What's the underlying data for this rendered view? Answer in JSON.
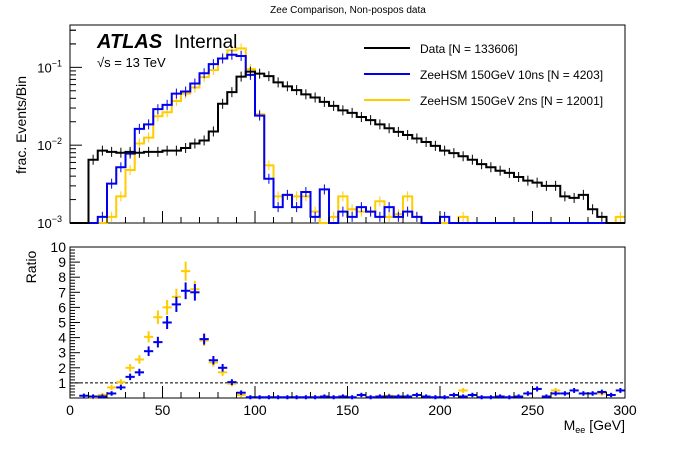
{
  "chart_data": [
    {
      "type": "line",
      "subtype": "step-histogram",
      "title": "Zee Comparison, Non-pospos data",
      "xlabel": "",
      "ylabel": "frac. Events/Bin",
      "yscale": "log",
      "xlim": [
        0,
        300
      ],
      "ylim": [
        0.001,
        0.35
      ],
      "ytick_labels": [
        "10^-3",
        "10^-2",
        "10^-1"
      ],
      "ytick_values": [
        0.001,
        0.01,
        0.1
      ],
      "bin_width": 5,
      "annotations": {
        "experiment": "ATLAS",
        "status": "Internal",
        "energy": "√s = 13 TeV"
      },
      "legend_position": "top-right",
      "series": [
        {
          "name": "Data [N = 133606]",
          "color": "#000000",
          "values": [
            0,
            0,
            0.0065,
            0.0085,
            0.0082,
            0.008,
            0.0082,
            0.008,
            0.0082,
            0.0082,
            0.0085,
            0.0085,
            0.0092,
            0.0105,
            0.0115,
            0.015,
            0.034,
            0.048,
            0.076,
            0.088,
            0.083,
            0.077,
            0.064,
            0.057,
            0.051,
            0.045,
            0.041,
            0.036,
            0.032,
            0.028,
            0.026,
            0.023,
            0.021,
            0.0185,
            0.0165,
            0.0148,
            0.0135,
            0.0122,
            0.011,
            0.0098,
            0.0085,
            0.0079,
            0.0072,
            0.0065,
            0.0057,
            0.0052,
            0.0047,
            0.0044,
            0.0039,
            0.0035,
            0.0033,
            0.003,
            0.003,
            0.0022,
            0.0021,
            0.0023,
            0.0015,
            0.0012,
            0,
            0
          ]
        },
        {
          "name": "ZeeHSM 150GeV 10ns [N = 4203]",
          "color": "#0000ee",
          "values": [
            0,
            0,
            0,
            0.0012,
            0.0032,
            0.0052,
            0.0078,
            0.0162,
            0.0185,
            0.029,
            0.033,
            0.046,
            0.049,
            0.062,
            0.084,
            0.11,
            0.13,
            0.145,
            0.14,
            0.08,
            0.024,
            0.0037,
            0.0016,
            0.0023,
            0.0016,
            0.0025,
            0.0012,
            0.0027,
            0.001,
            0.0014,
            0.0012,
            0.0016,
            0.0014,
            0.0012,
            0.0016,
            0.0012,
            0.0014,
            0.0012,
            0,
            0,
            0.0012,
            0,
            0,
            0,
            0,
            0,
            0,
            0,
            0,
            0,
            0,
            0,
            0,
            0,
            0,
            0,
            0,
            0,
            0,
            0
          ]
        },
        {
          "name": "ZeeHSM 150GeV 2ns [N = 12001]",
          "color": "#ffcc00",
          "values": [
            0,
            0,
            0,
            0,
            0.0012,
            0.0022,
            0.0048,
            0.0105,
            0.0125,
            0.0235,
            0.0265,
            0.037,
            0.046,
            0.055,
            0.075,
            0.092,
            0.13,
            0.165,
            0.175,
            0.095,
            0.025,
            0.0055,
            0.0022,
            0.0023,
            0.0022,
            0.0022,
            0.0014,
            0.001,
            0.0012,
            0.0022,
            0.0015,
            0.0014,
            0.0014,
            0.0019,
            0.0012,
            0.0013,
            0.0022,
            0.0012,
            0.001,
            0,
            0,
            0,
            0.0012,
            0,
            0,
            0,
            0,
            0,
            0,
            0,
            0,
            0,
            0,
            0,
            0,
            0,
            0,
            0,
            0,
            0.0012
          ]
        }
      ]
    },
    {
      "type": "scatter",
      "subtype": "ratio-errorbars",
      "xlabel": "M_ee [GeV]",
      "ylabel": "Ratio",
      "xlim": [
        0,
        300
      ],
      "ylim": [
        0,
        10
      ],
      "ytick_labels": [
        "1",
        "2",
        "3",
        "4",
        "5",
        "6",
        "7",
        "8",
        "9",
        "10"
      ],
      "xtick_labels": [
        "0",
        "50",
        "100",
        "150",
        "200",
        "250",
        "300"
      ],
      "reference_line": 1,
      "series": [
        {
          "name": "ZeeHSM 150GeV 10ns / Data",
          "color": "#0000ee",
          "x": [
            7.5,
            12.5,
            17.5,
            22.5,
            27.5,
            32.5,
            37.5,
            42.5,
            47.5,
            52.5,
            57.5,
            62.5,
            67.5,
            72.5,
            77.5,
            82.5,
            87.5,
            92.5,
            97.5,
            102.5,
            107.5,
            112.5,
            117.5,
            122.5,
            127.5,
            132.5,
            137.5,
            142.5,
            147.5,
            152.5,
            157.5,
            162.5,
            167.5,
            172.5,
            177.5,
            182.5,
            187.5,
            192.5,
            197.5,
            202.5,
            207.5,
            212.5,
            217.5,
            222.5,
            227.5,
            232.5,
            237.5,
            242.5,
            247.5,
            252.5,
            257.5,
            262.5,
            267.5,
            272.5,
            277.5,
            282.5,
            287.5,
            292.5,
            297.5
          ],
          "y": [
            0.15,
            0.1,
            0.1,
            0.3,
            0.7,
            1.4,
            1.7,
            3.1,
            3.7,
            5.0,
            6.2,
            7.1,
            7.0,
            3.9,
            2.5,
            2.0,
            1.05,
            0.35,
            0.05,
            0.05,
            0.05,
            0.05,
            0.05,
            0.05,
            0.05,
            0.05,
            0.1,
            0.05,
            0.1,
            0.05,
            0.2,
            0.05,
            0.1,
            0.1,
            0.1,
            0.1,
            0.2,
            0.1,
            0.05,
            0.05,
            0.2,
            0.1,
            0.2,
            0.05,
            0.05,
            0.1,
            0.05,
            0.1,
            0.3,
            0.6,
            0.1,
            0.3,
            0.3,
            0.5,
            0.3,
            0.3,
            0.4,
            0.2,
            0.5
          ]
        },
        {
          "name": "ZeeHSM 150GeV 2ns / Data",
          "color": "#ffcc00",
          "x": [
            12.5,
            17.5,
            22.5,
            27.5,
            32.5,
            37.5,
            42.5,
            47.5,
            52.5,
            57.5,
            62.5,
            67.5,
            72.5,
            77.5,
            82.5,
            87.5,
            92.5,
            172.5,
            212.5,
            262.5,
            287.5,
            297.5
          ],
          "y": [
            0.05,
            0.2,
            0.7,
            1.05,
            2.0,
            2.55,
            4.05,
            5.35,
            6.0,
            6.7,
            8.4,
            7.2,
            3.8,
            2.35,
            1.7,
            0.95,
            0.2,
            0.15,
            0.5,
            0.5,
            0.3,
            0.5
          ]
        }
      ]
    }
  ]
}
